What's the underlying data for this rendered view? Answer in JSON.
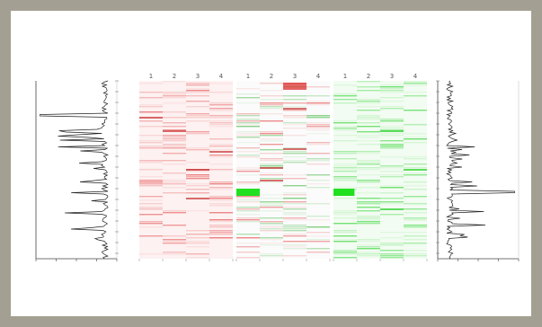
{
  "frame": {
    "border_color": "#a39f92",
    "background": "#ffffff"
  },
  "figure": {
    "panels": [
      {
        "key": "red",
        "color": "#e23a3a",
        "columns": [
          "1",
          "2",
          "3",
          "4"
        ],
        "caption": ""
      },
      {
        "key": "mixed",
        "color_up": "#e23a3a",
        "color_down": "#20d020",
        "columns": [
          "1",
          "2",
          "3",
          "4"
        ],
        "caption": ""
      },
      {
        "key": "green",
        "color": "#20d020",
        "columns": [
          "1",
          "2",
          "3",
          "4"
        ],
        "caption": ""
      }
    ],
    "side_profiles": [
      "left",
      "right"
    ]
  }
}
